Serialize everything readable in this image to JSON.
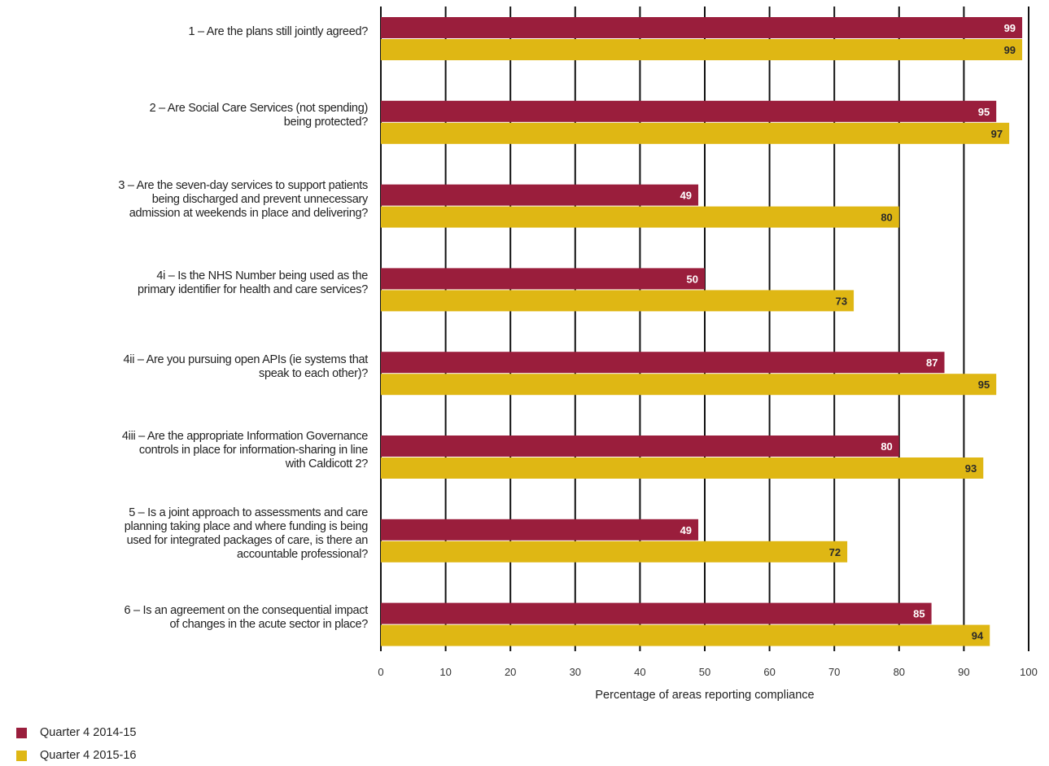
{
  "chart_data": {
    "type": "bar",
    "orientation": "horizontal",
    "categories": [
      "1 – Are the plans still jointly agreed?",
      "2 – Are Social Care Services (not spending) being protected?",
      "3 – Are the seven-day services to support patients being discharged and prevent unnecessary admission at weekends in place and delivering?",
      "4i – Is the NHS Number being used as the primary identifier for health and care services?",
      "4ii – Are you pursuing open APIs (ie systems that speak to each other)?",
      "4iii – Are the appropriate Information Governance controls in place for information-sharing in line with Caldicott 2?",
      "5 – Is a joint approach to assessments and care planning taking place and where funding is being used for integrated packages of care, is there an accountable professional?",
      "6 – Is an agreement on the consequential impact of changes in the acute sector in place?"
    ],
    "category_lines": [
      [
        "1 – Are the plans still jointly agreed?"
      ],
      [
        "2 – Are Social Care Services (not spending)",
        "being protected?"
      ],
      [
        "3 – Are the seven-day services to support patients",
        "being discharged and prevent unnecessary",
        "admission at weekends in place and delivering?"
      ],
      [
        "4i – Is the NHS Number being used as the",
        "primary identifier for health and care services?"
      ],
      [
        "4ii – Are you pursuing open APIs (ie systems that",
        "speak to each other)?"
      ],
      [
        "4iii – Are the appropriate Information Governance",
        "controls in place for information-sharing in line",
        "with Caldicott 2?"
      ],
      [
        "5 – Is a joint approach to assessments and care",
        "planning taking place and where funding is being",
        "used for integrated packages of care, is there an",
        "accountable professional?"
      ],
      [
        "6 – Is an agreement on the consequential impact",
        "of changes in the acute sector in place?"
      ]
    ],
    "series": [
      {
        "name": "Quarter 4 2014-15",
        "color": "#9a1e3c",
        "values": [
          99,
          95,
          49,
          50,
          87,
          80,
          49,
          85
        ]
      },
      {
        "name": "Quarter 4 2015-16",
        "color": "#dfb714",
        "values": [
          99,
          97,
          80,
          73,
          95,
          93,
          72,
          94
        ]
      }
    ],
    "xlabel": "Percentage of areas reporting compliance",
    "xlim": [
      0,
      100
    ],
    "xticks": [
      0,
      10,
      20,
      30,
      40,
      50,
      60,
      70,
      80,
      90,
      100
    ],
    "grid": true,
    "legend_position": "bottom-left"
  }
}
